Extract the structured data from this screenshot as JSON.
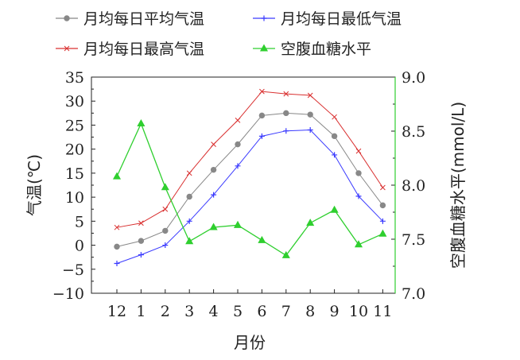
{
  "chart_data": {
    "type": "line",
    "categories": [
      "12",
      "1",
      "2",
      "3",
      "4",
      "5",
      "6",
      "7",
      "8",
      "9",
      "10",
      "11"
    ],
    "xlabel": "月份",
    "ylabel_left": "气温(℃)",
    "ylabel_right": "空腹血糖水平(mmol/L)",
    "ylim_left": [
      -10,
      35
    ],
    "ylim_right": [
      7.0,
      9.0
    ],
    "yticks_left": [
      "35",
      "30",
      "25",
      "20",
      "15",
      "10",
      "5",
      "0",
      "−5",
      "−10"
    ],
    "yticks_right": [
      "9.0",
      "8.5",
      "8.0",
      "7.5",
      "7.0"
    ],
    "legend_position": "top",
    "grid": false,
    "series": [
      {
        "name": "月均每日平均气温",
        "axis": "left",
        "color": "#888888",
        "marker": "circle",
        "values": [
          -0.3,
          0.9,
          3.0,
          10.1,
          15.7,
          21.0,
          27.0,
          27.5,
          27.2,
          22.7,
          15.0,
          8.3
        ]
      },
      {
        "name": "月均每日最低气温",
        "axis": "left",
        "color": "#3a3aff",
        "marker": "plus",
        "values": [
          -3.8,
          -2.0,
          0.0,
          5.0,
          10.5,
          16.5,
          22.7,
          23.8,
          24.0,
          18.8,
          10.2,
          5.0
        ]
      },
      {
        "name": "月均每日最高气温",
        "axis": "left",
        "color": "#d93030",
        "marker": "x",
        "values": [
          3.7,
          4.6,
          7.5,
          15.0,
          21.0,
          26.0,
          32.0,
          31.5,
          31.2,
          26.7,
          19.6,
          12.0
        ]
      },
      {
        "name": "空腹血糖水平",
        "axis": "right",
        "color": "#2fcf2f",
        "marker": "triangle",
        "values": [
          8.08,
          8.57,
          7.98,
          7.48,
          7.61,
          7.63,
          7.49,
          7.35,
          7.65,
          7.77,
          7.45,
          7.55
        ]
      }
    ]
  }
}
